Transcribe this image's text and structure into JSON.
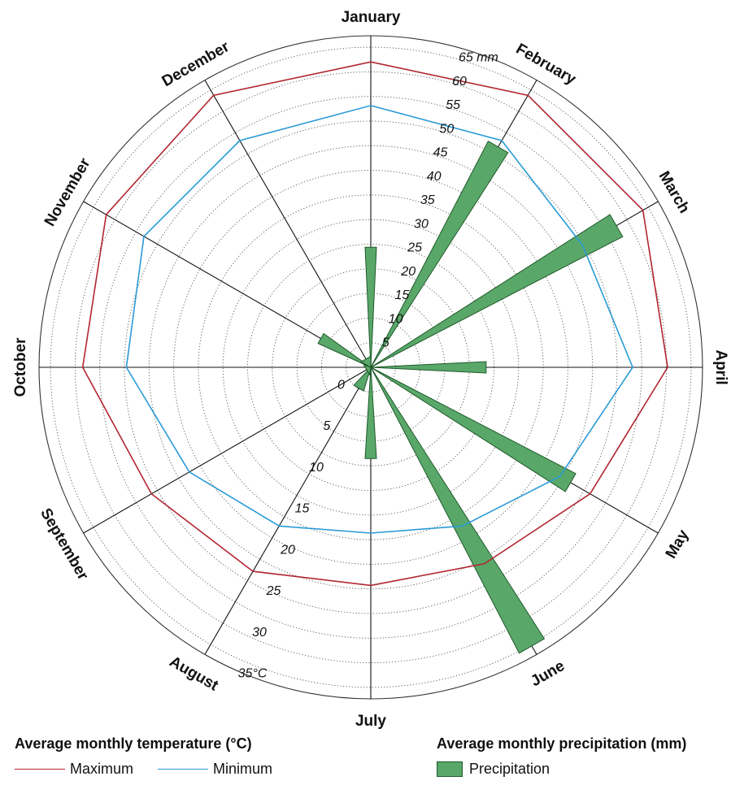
{
  "chart_data": {
    "type": "radar",
    "months": [
      "January",
      "February",
      "March",
      "April",
      "May",
      "June",
      "July",
      "August",
      "September",
      "October",
      "November",
      "December"
    ],
    "max_temp_c": [
      33,
      34,
      34,
      32,
      27,
      24,
      23,
      25,
      27,
      31,
      33,
      34
    ],
    "min_temp_c": [
      28,
      28,
      26,
      28,
      23,
      19,
      17,
      19,
      22,
      26,
      28,
      28
    ],
    "precipitation_mm": [
      25,
      53,
      59,
      24,
      48,
      67,
      19,
      5,
      1,
      0,
      12,
      2
    ],
    "temperature_ticks": [
      "0",
      "5",
      "10",
      "15",
      "20",
      "25",
      "30",
      "35°C"
    ],
    "temperature_range": [
      -2,
      36
    ],
    "precipitation_ticks": [
      "5",
      "10",
      "15",
      "20",
      "25",
      "30",
      "35",
      "40",
      "45",
      "50",
      "55",
      "60",
      "65 mm"
    ],
    "precipitation_range": [
      0,
      68
    ],
    "colors": {
      "max": "#b22630",
      "min": "#2a9bd6",
      "precip_fill": "#5aa76a",
      "precip_stroke": "#1e5a2a",
      "grid": "#555555"
    }
  },
  "legend": {
    "temperature_title": "Average monthly temperature (°C)",
    "max_label": "Maximum",
    "min_label": "Minimum",
    "precipitation_title": "Average monthly precipitation (mm)",
    "precipitation_label": "Precipitation"
  }
}
